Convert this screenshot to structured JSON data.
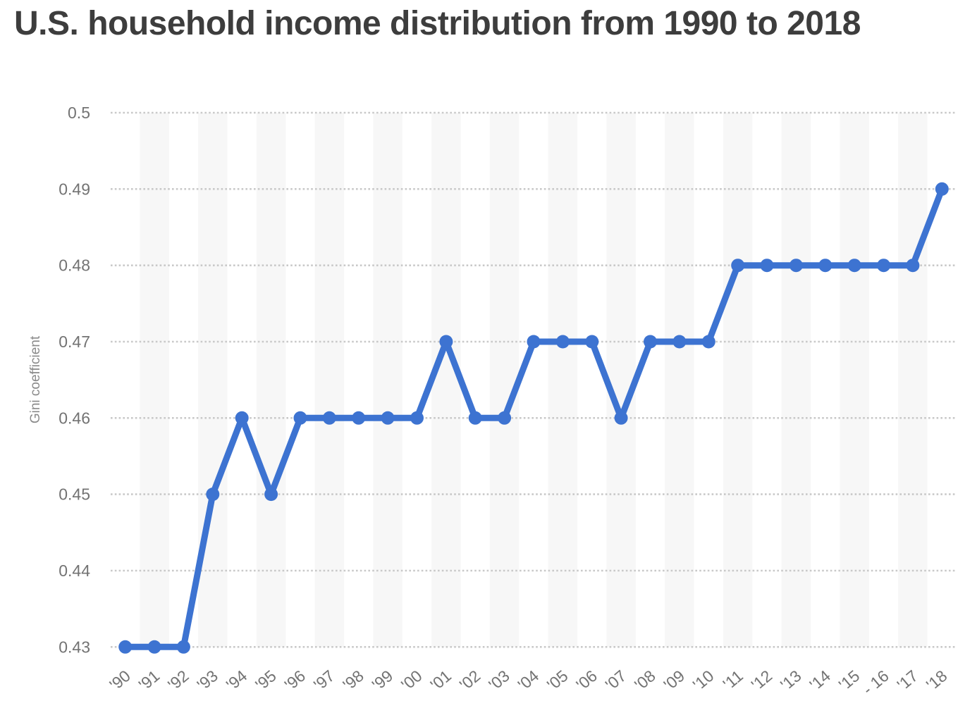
{
  "chart_data": {
    "type": "line",
    "title": "U.S. household income distribution from 1990 to 2018",
    "ylabel": "Gini coefficient",
    "xlabel": "",
    "categories": [
      "'90",
      "'91",
      "'92",
      "'93",
      "'94",
      "'95",
      "'96",
      "'97",
      "'98",
      "'99",
      "'00",
      "'01",
      "'02",
      "'03",
      "'04",
      "'05",
      "'06",
      "'07",
      "'08",
      "'09",
      "'10",
      "'11",
      "'12",
      "'13",
      "'14",
      "'15",
      "- 16",
      "'17",
      "'18"
    ],
    "values": [
      0.43,
      0.43,
      0.43,
      0.45,
      0.46,
      0.45,
      0.46,
      0.46,
      0.46,
      0.46,
      0.46,
      0.47,
      0.46,
      0.46,
      0.47,
      0.47,
      0.47,
      0.46,
      0.47,
      0.47,
      0.47,
      0.48,
      0.48,
      0.48,
      0.48,
      0.48,
      0.48,
      0.48,
      0.49
    ],
    "series_name": "Gini coefficient",
    "ylim": [
      0.43,
      0.5
    ],
    "yticks": [
      0.5,
      0.49,
      0.48,
      0.47,
      0.46,
      0.45,
      0.44,
      0.43
    ],
    "grid": "horizontal-dotted",
    "legend": "none",
    "background_stripes": "alternating-category-bands-odd-years"
  },
  "colors": {
    "line": "#3d73d1",
    "point": "#3d73d1",
    "gridline": "#c9c9c9",
    "stripe": "#f7f7f7",
    "title_text": "#3d3d3d",
    "tick_text": "#737373",
    "axis_label_text": "#8a8a8a",
    "background": "#ffffff"
  }
}
